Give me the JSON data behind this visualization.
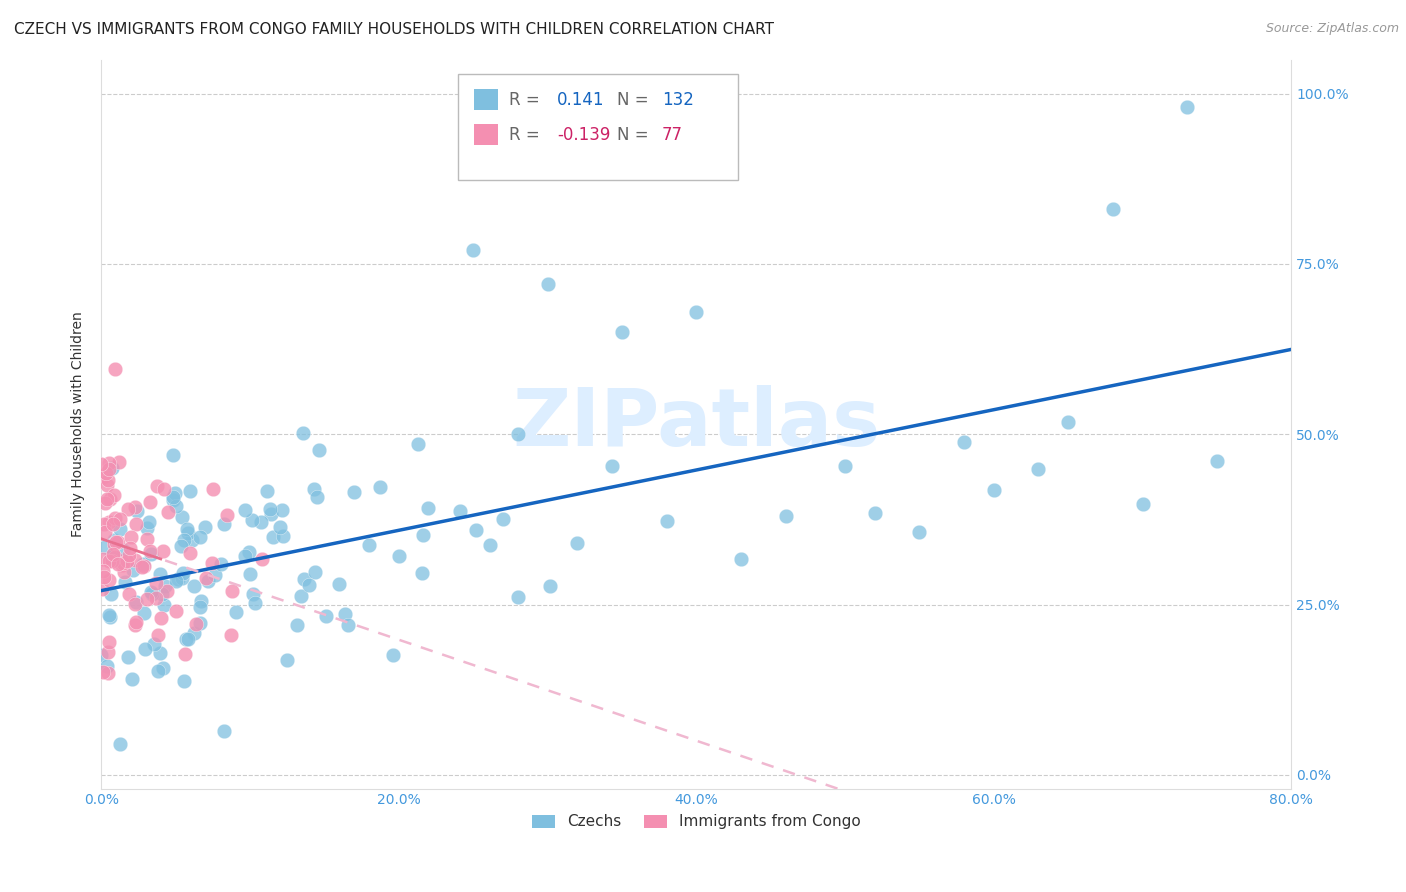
{
  "title": "CZECH VS IMMIGRANTS FROM CONGO FAMILY HOUSEHOLDS WITH CHILDREN CORRELATION CHART",
  "source": "Source: ZipAtlas.com",
  "ylabel": "Family Households with Children",
  "xlim": [
    0.0,
    0.8
  ],
  "ylim": [
    -0.02,
    1.05
  ],
  "czech_r": 0.141,
  "czech_n": 132,
  "congo_r": -0.139,
  "congo_n": 77,
  "legend_labels": [
    "Czechs",
    "Immigrants from Congo"
  ],
  "blue_color": "#7fbfdf",
  "pink_color": "#f48fb1",
  "blue_line_color": "#1565c0",
  "pink_line_color": "#e91e8c",
  "pink_line_dashed_color": "#f0b8d0",
  "axis_color": "#4499dd",
  "watermark_color": "#ddeeff",
  "background_color": "#ffffff",
  "grid_color": "#cccccc",
  "title_fontsize": 11,
  "source_fontsize": 9,
  "axis_label_fontsize": 10,
  "tick_fontsize": 10,
  "legend_r_color": "#555555",
  "legend_box_edge": "#aaaaaa",
  "x_tick_vals": [
    0.0,
    0.2,
    0.4,
    0.6,
    0.8
  ],
  "x_tick_labels": [
    "0.0%",
    "20.0%",
    "40.0%",
    "60.0%",
    "80.0%"
  ],
  "y_tick_vals": [
    0.0,
    0.25,
    0.5,
    0.75,
    1.0
  ],
  "y_tick_labels": [
    "0.0%",
    "25.0%",
    "50.0%",
    "75.0%",
    "100.0%"
  ]
}
